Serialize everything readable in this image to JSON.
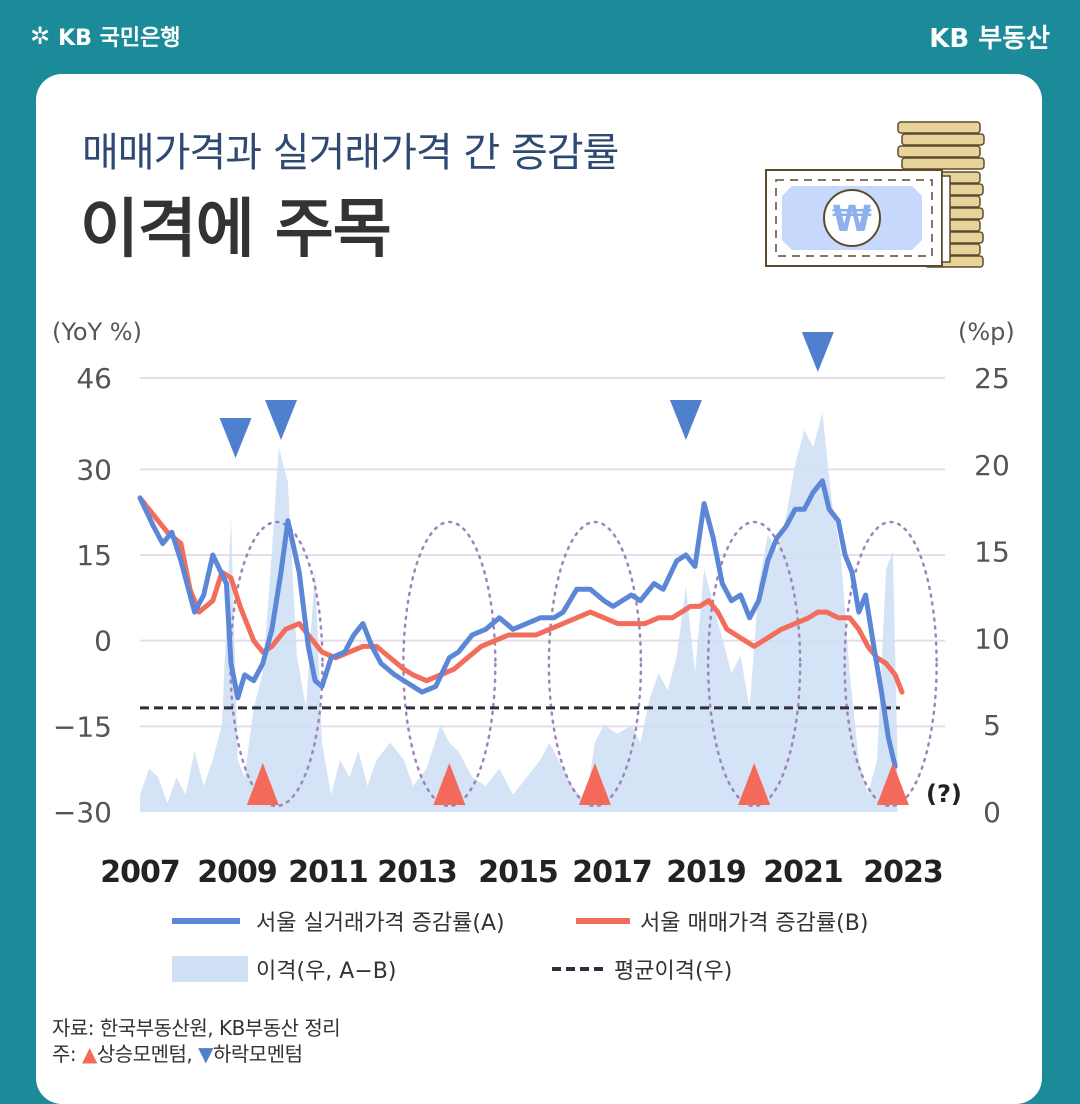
{
  "header": {
    "bank_logo": "KB 국민은행",
    "service_logo": "KB 부동산"
  },
  "subtitle": "매매가격과 실거래가격 간 증감률",
  "title": "이격에 주목",
  "chart_data": {
    "type": "line",
    "x_ticks": [
      "2007",
      "2009",
      "2011",
      "2013",
      "2015",
      "2017",
      "2019",
      "2021",
      "2023"
    ],
    "left_axis_label": "(YoY %)",
    "left_ticks": [
      "46",
      "30",
      "15",
      "0",
      "−15",
      "−30"
    ],
    "right_axis_label": "(%p)",
    "right_ticks": [
      "25",
      "20",
      "15",
      "10",
      "5",
      "0"
    ],
    "series": [
      {
        "name": "서울 실거래가격 증감률(A)",
        "axis": "left",
        "color": "#5b87d6",
        "points": [
          [
            2007.0,
            25
          ],
          [
            2007.3,
            20
          ],
          [
            2007.5,
            17
          ],
          [
            2007.7,
            19
          ],
          [
            2007.9,
            14
          ],
          [
            2008.2,
            5
          ],
          [
            2008.4,
            8
          ],
          [
            2008.6,
            15
          ],
          [
            2008.9,
            10
          ],
          [
            2009.0,
            -4
          ],
          [
            2009.15,
            -10
          ],
          [
            2009.3,
            -6
          ],
          [
            2009.5,
            -7
          ],
          [
            2009.7,
            -4
          ],
          [
            2009.9,
            2
          ],
          [
            2010.1,
            12
          ],
          [
            2010.25,
            21
          ],
          [
            2010.5,
            12
          ],
          [
            2010.7,
            -1
          ],
          [
            2010.85,
            -7
          ],
          [
            2011.0,
            -8
          ],
          [
            2011.2,
            -3
          ],
          [
            2011.5,
            -2
          ],
          [
            2011.7,
            1
          ],
          [
            2011.9,
            3
          ],
          [
            2012.1,
            -1
          ],
          [
            2012.3,
            -4
          ],
          [
            2012.6,
            -6
          ],
          [
            2012.8,
            -7
          ],
          [
            2013.0,
            -8
          ],
          [
            2013.2,
            -9
          ],
          [
            2013.5,
            -8
          ],
          [
            2013.8,
            -3
          ],
          [
            2014.0,
            -2
          ],
          [
            2014.3,
            1
          ],
          [
            2014.6,
            2
          ],
          [
            2014.9,
            4
          ],
          [
            2015.2,
            2
          ],
          [
            2015.5,
            3
          ],
          [
            2015.8,
            4
          ],
          [
            2016.1,
            4
          ],
          [
            2016.3,
            5
          ],
          [
            2016.6,
            9
          ],
          [
            2016.9,
            9
          ],
          [
            2017.2,
            7
          ],
          [
            2017.4,
            6
          ],
          [
            2017.8,
            8
          ],
          [
            2018.0,
            7
          ],
          [
            2018.3,
            10
          ],
          [
            2018.5,
            9
          ],
          [
            2018.8,
            14
          ],
          [
            2019.0,
            15
          ],
          [
            2019.2,
            13
          ],
          [
            2019.4,
            24
          ],
          [
            2019.6,
            18
          ],
          [
            2019.8,
            10
          ],
          [
            2020.0,
            7
          ],
          [
            2020.2,
            8
          ],
          [
            2020.4,
            4
          ],
          [
            2020.6,
            7
          ],
          [
            2020.8,
            14
          ],
          [
            2021.0,
            18
          ],
          [
            2021.2,
            20
          ],
          [
            2021.4,
            23
          ],
          [
            2021.6,
            23
          ],
          [
            2021.8,
            26
          ],
          [
            2022.0,
            28
          ],
          [
            2022.15,
            23
          ],
          [
            2022.35,
            21
          ],
          [
            2022.5,
            15
          ],
          [
            2022.65,
            12
          ],
          [
            2022.8,
            5
          ],
          [
            2022.95,
            8
          ],
          [
            2023.15,
            -2
          ],
          [
            2023.3,
            -9
          ],
          [
            2023.45,
            -17
          ],
          [
            2023.6,
            -22
          ]
        ]
      },
      {
        "name": "서울 매매가격 증감률(B)",
        "axis": "left",
        "color": "#f26d5b",
        "points": [
          [
            2007.0,
            25
          ],
          [
            2007.3,
            22
          ],
          [
            2007.6,
            19
          ],
          [
            2007.9,
            17
          ],
          [
            2008.1,
            9
          ],
          [
            2008.3,
            5
          ],
          [
            2008.6,
            7
          ],
          [
            2008.8,
            12
          ],
          [
            2009.0,
            11
          ],
          [
            2009.2,
            6
          ],
          [
            2009.5,
            0
          ],
          [
            2009.7,
            -2
          ],
          [
            2009.9,
            -1
          ],
          [
            2010.2,
            2
          ],
          [
            2010.5,
            3
          ],
          [
            2010.8,
            0
          ],
          [
            2011.0,
            -2
          ],
          [
            2011.3,
            -3
          ],
          [
            2011.6,
            -2
          ],
          [
            2011.9,
            -1
          ],
          [
            2012.2,
            -1
          ],
          [
            2012.5,
            -3
          ],
          [
            2012.8,
            -5
          ],
          [
            2013.0,
            -6
          ],
          [
            2013.3,
            -7
          ],
          [
            2013.6,
            -6
          ],
          [
            2013.9,
            -5
          ],
          [
            2014.2,
            -3
          ],
          [
            2014.5,
            -1
          ],
          [
            2014.8,
            0
          ],
          [
            2015.1,
            1
          ],
          [
            2015.4,
            1
          ],
          [
            2015.7,
            1
          ],
          [
            2016.0,
            2
          ],
          [
            2016.3,
            3
          ],
          [
            2016.6,
            4
          ],
          [
            2016.9,
            5
          ],
          [
            2017.2,
            4
          ],
          [
            2017.5,
            3
          ],
          [
            2017.8,
            3
          ],
          [
            2018.1,
            3
          ],
          [
            2018.4,
            4
          ],
          [
            2018.7,
            4
          ],
          [
            2018.9,
            5
          ],
          [
            2019.1,
            6
          ],
          [
            2019.3,
            6
          ],
          [
            2019.5,
            7
          ],
          [
            2019.7,
            5
          ],
          [
            2019.9,
            2
          ],
          [
            2020.1,
            1
          ],
          [
            2020.3,
            0
          ],
          [
            2020.5,
            -1
          ],
          [
            2020.7,
            0
          ],
          [
            2020.9,
            1
          ],
          [
            2021.1,
            2
          ],
          [
            2021.4,
            3
          ],
          [
            2021.7,
            4
          ],
          [
            2021.9,
            5
          ],
          [
            2022.1,
            5
          ],
          [
            2022.35,
            4
          ],
          [
            2022.6,
            4
          ],
          [
            2022.8,
            2
          ],
          [
            2023.0,
            -1
          ],
          [
            2023.2,
            -3
          ],
          [
            2023.4,
            -4
          ],
          [
            2023.6,
            -6
          ],
          [
            2023.75,
            -9
          ]
        ]
      },
      {
        "name": "이격(우, A−B)",
        "axis": "right",
        "type": "area",
        "color": "#cfe0f5",
        "points": [
          [
            2007.0,
            1
          ],
          [
            2007.2,
            2.5
          ],
          [
            2007.4,
            2
          ],
          [
            2007.6,
            0.5
          ],
          [
            2007.8,
            2
          ],
          [
            2008.0,
            1
          ],
          [
            2008.2,
            3.5
          ],
          [
            2008.4,
            1.5
          ],
          [
            2008.6,
            3
          ],
          [
            2008.8,
            5
          ],
          [
            2009.0,
            17
          ],
          [
            2009.15,
            3
          ],
          [
            2009.3,
            2
          ],
          [
            2009.5,
            6
          ],
          [
            2009.7,
            8
          ],
          [
            2009.9,
            15
          ],
          [
            2010.05,
            21
          ],
          [
            2010.25,
            19
          ],
          [
            2010.45,
            9
          ],
          [
            2010.65,
            6
          ],
          [
            2010.85,
            14
          ],
          [
            2011.0,
            4
          ],
          [
            2011.2,
            1
          ],
          [
            2011.4,
            3
          ],
          [
            2011.6,
            2
          ],
          [
            2011.8,
            3.5
          ],
          [
            2012.0,
            1.5
          ],
          [
            2012.2,
            3
          ],
          [
            2012.5,
            4
          ],
          [
            2012.8,
            3
          ],
          [
            2013.0,
            1.5
          ],
          [
            2013.3,
            2.5
          ],
          [
            2013.6,
            5
          ],
          [
            2013.8,
            4
          ],
          [
            2014.0,
            3.5
          ],
          [
            2014.3,
            2
          ],
          [
            2014.6,
            1.5
          ],
          [
            2014.9,
            2.5
          ],
          [
            2015.2,
            1
          ],
          [
            2015.5,
            2
          ],
          [
            2015.8,
            3
          ],
          [
            2016.0,
            4
          ],
          [
            2016.3,
            2.5
          ],
          [
            2016.5,
            1.5
          ],
          [
            2016.8,
            0.5
          ],
          [
            2017.0,
            4
          ],
          [
            2017.2,
            5
          ],
          [
            2017.5,
            4.5
          ],
          [
            2017.8,
            5
          ],
          [
            2018.0,
            4
          ],
          [
            2018.2,
            6.5
          ],
          [
            2018.4,
            8
          ],
          [
            2018.6,
            7
          ],
          [
            2018.8,
            9
          ],
          [
            2019.0,
            13
          ],
          [
            2019.2,
            8
          ],
          [
            2019.4,
            14
          ],
          [
            2019.6,
            12
          ],
          [
            2019.8,
            10
          ],
          [
            2020.0,
            8
          ],
          [
            2020.2,
            9
          ],
          [
            2020.4,
            6
          ],
          [
            2020.6,
            13
          ],
          [
            2020.8,
            16
          ],
          [
            2021.0,
            15
          ],
          [
            2021.2,
            17
          ],
          [
            2021.4,
            20
          ],
          [
            2021.6,
            22
          ],
          [
            2021.8,
            21
          ],
          [
            2022.0,
            23
          ],
          [
            2022.2,
            18
          ],
          [
            2022.4,
            15
          ],
          [
            2022.6,
            8
          ],
          [
            2022.8,
            3
          ],
          [
            2023.0,
            1
          ],
          [
            2023.2,
            3
          ],
          [
            2023.4,
            14
          ],
          [
            2023.55,
            15
          ],
          [
            2023.65,
            3
          ]
        ]
      },
      {
        "name": "평균이격(우)",
        "axis": "right",
        "type": "dashed",
        "color": "#2e2e3e",
        "value": 6
      }
    ],
    "annotations": {
      "up_markers": [
        2009.7,
        2013.8,
        2017.0,
        2020.5,
        2023.55
      ],
      "down_markers": [
        2009.1,
        2010.1,
        2019.0,
        2021.9
      ],
      "ellipses_centered_on": [
        2010.0,
        2013.8,
        2017.0,
        2020.5,
        2023.5
      ],
      "end_label": "(?)"
    }
  },
  "legend": {
    "a": "서울 실거래가격 증감률(A)",
    "b": "서울 매매가격 증감률(B)",
    "gap": "이격(우, A−B)",
    "avg": "평균이격(우)"
  },
  "notes": {
    "source": "자료: 한국부동산원, KB부동산 정리",
    "note_prefix": "주: ",
    "up_label": "상승모멘텀,",
    "down_label": "하락모멘텀"
  },
  "colors": {
    "background": "#1b8b99",
    "series_a": "#5b87d6",
    "series_b": "#f26d5b",
    "gap_area": "#cfe0f5",
    "up_marker": "#f36a5a",
    "down_marker": "#4f7fcf",
    "ellipse": "#9b86b8"
  }
}
